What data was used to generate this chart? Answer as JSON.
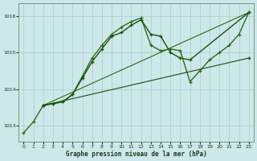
{
  "xlabel": "Graphe pression niveau de la mer (hPa)",
  "bg_color": "#cce8e8",
  "grid_color": "#aacccc",
  "xlim": [
    -0.5,
    23.5
  ],
  "ylim": [
    1012.55,
    1016.35
  ],
  "yticks": [
    1013,
    1014,
    1015,
    1016
  ],
  "xticks": [
    0,
    1,
    2,
    3,
    4,
    5,
    6,
    7,
    8,
    9,
    10,
    11,
    12,
    13,
    14,
    15,
    16,
    17,
    18,
    19,
    20,
    21,
    22,
    23
  ],
  "series": [
    {
      "x": [
        0,
        1,
        2,
        3,
        4,
        5,
        6,
        7,
        8,
        9,
        10,
        11,
        12,
        13,
        14,
        15,
        16,
        17,
        18,
        19,
        20,
        21,
        22,
        23
      ],
      "y": [
        1012.8,
        1013.1,
        1013.55,
        1013.6,
        1013.65,
        1013.85,
        1014.35,
        1014.85,
        1015.2,
        1015.5,
        1015.7,
        1015.85,
        1015.95,
        1015.2,
        1015.05,
        1015.1,
        1015.05,
        1014.2,
        1014.5,
        1014.8,
        1015.0,
        1015.2,
        1015.5,
        1016.1
      ],
      "lw": 1.0
    },
    {
      "x": [
        2,
        3,
        4,
        5,
        6,
        7,
        8,
        9,
        10,
        11,
        12,
        13,
        14,
        15,
        16,
        17,
        23
      ],
      "y": [
        1013.55,
        1013.6,
        1013.65,
        1013.85,
        1014.3,
        1014.75,
        1015.1,
        1015.45,
        1015.55,
        1015.75,
        1015.9,
        1015.5,
        1015.45,
        1015.0,
        1014.85,
        1014.8,
        1016.1
      ],
      "lw": 1.0
    },
    {
      "x": [
        2,
        23
      ],
      "y": [
        1013.55,
        1016.1
      ],
      "lw": 0.8
    },
    {
      "x": [
        2,
        23
      ],
      "y": [
        1013.55,
        1014.85
      ],
      "lw": 0.8
    }
  ]
}
